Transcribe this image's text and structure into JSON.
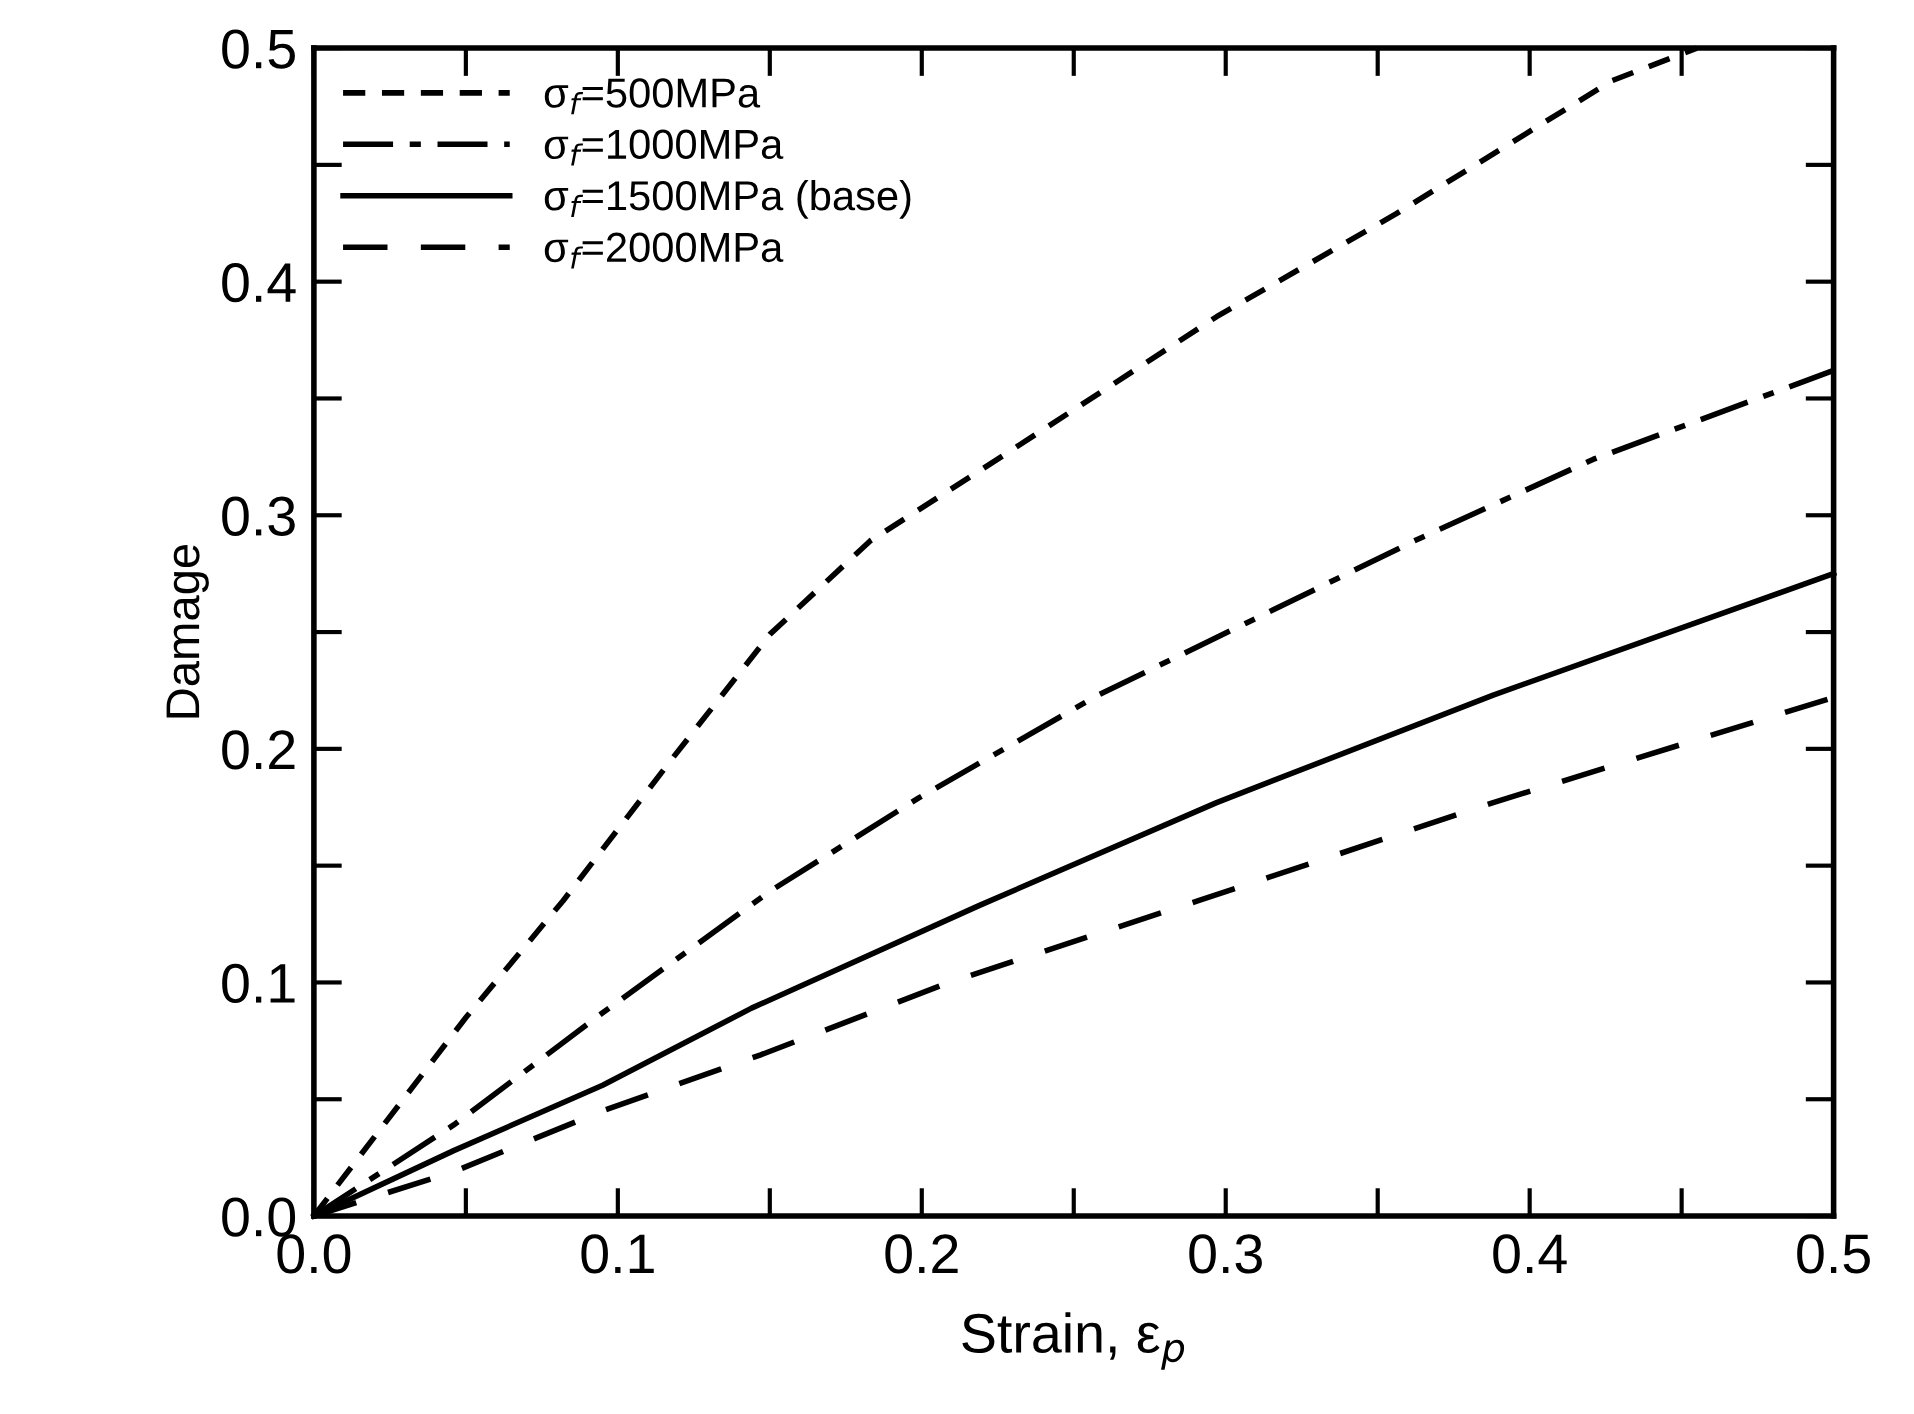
{
  "chart_data": {
    "type": "line",
    "xlabel": "Strain, ε$_{p}$",
    "ylabel": "Damage",
    "xlim": [
      0.0,
      0.5
    ],
    "ylim": [
      0.0,
      0.5
    ],
    "xticks": [
      {
        "value": 0.0,
        "label": "0.0"
      },
      {
        "value": 0.05,
        "label": null
      },
      0.1,
      {
        "value": 0.15,
        "label": null
      },
      0.2,
      {
        "value": 0.25,
        "label": null
      },
      0.3,
      {
        "value": 0.35,
        "label": null
      },
      0.4,
      {
        "value": 0.45,
        "label": null
      },
      0.5
    ],
    "yticks": [
      {
        "value": 0.0,
        "label": "0.0"
      },
      {
        "value": 0.05,
        "label": null
      },
      0.1,
      {
        "value": 0.15,
        "label": null
      },
      0.2,
      {
        "value": 0.25,
        "label": null
      },
      0.3,
      {
        "value": 0.35,
        "label": null
      },
      0.4,
      {
        "value": 0.45,
        "label": null
      },
      0.5
    ],
    "grid": false,
    "legend": "top left",
    "marker": "none",
    "series": [
      {
        "name": "σ$_{f}$=500MPa",
        "color": "#000000",
        "line_style": "dotted",
        "x": [
          0.0,
          0.05,
          0.082,
          0.118,
          0.15,
          0.183,
          0.219,
          0.251,
          0.297,
          0.356,
          0.427,
          0.455
        ],
        "values": [
          0.0,
          0.085,
          0.135,
          0.196,
          0.249,
          0.289,
          0.319,
          0.346,
          0.385,
          0.429,
          0.486,
          0.5
        ]
      },
      {
        "name": "σ$_{f}$=1000MPa",
        "color": "#000000",
        "line_style": "dashdot",
        "x": [
          0.0,
          0.046,
          0.095,
          0.15,
          0.199,
          0.258,
          0.307,
          0.362,
          0.421,
          0.5
        ],
        "values": [
          0.0,
          0.039,
          0.087,
          0.139,
          0.179,
          0.223,
          0.254,
          0.289,
          0.324,
          0.362
        ]
      },
      {
        "name": "σ$_{f}$=1500MPa (base)",
        "color": "#000000",
        "line_style": "solid",
        "x": [
          0.0,
          0.046,
          0.095,
          0.144,
          0.219,
          0.297,
          0.388,
          0.5
        ],
        "values": [
          0.0,
          0.028,
          0.056,
          0.089,
          0.133,
          0.177,
          0.223,
          0.275
        ]
      },
      {
        "name": "σ$_{f}$=2000MPa",
        "color": "#000000",
        "line_style": "dashed",
        "x": [
          0.0,
          0.046,
          0.095,
          0.147,
          0.209,
          0.291,
          0.388,
          0.5
        ],
        "values": [
          0.0,
          0.019,
          0.045,
          0.069,
          0.1,
          0.135,
          0.177,
          0.222
        ]
      }
    ]
  }
}
